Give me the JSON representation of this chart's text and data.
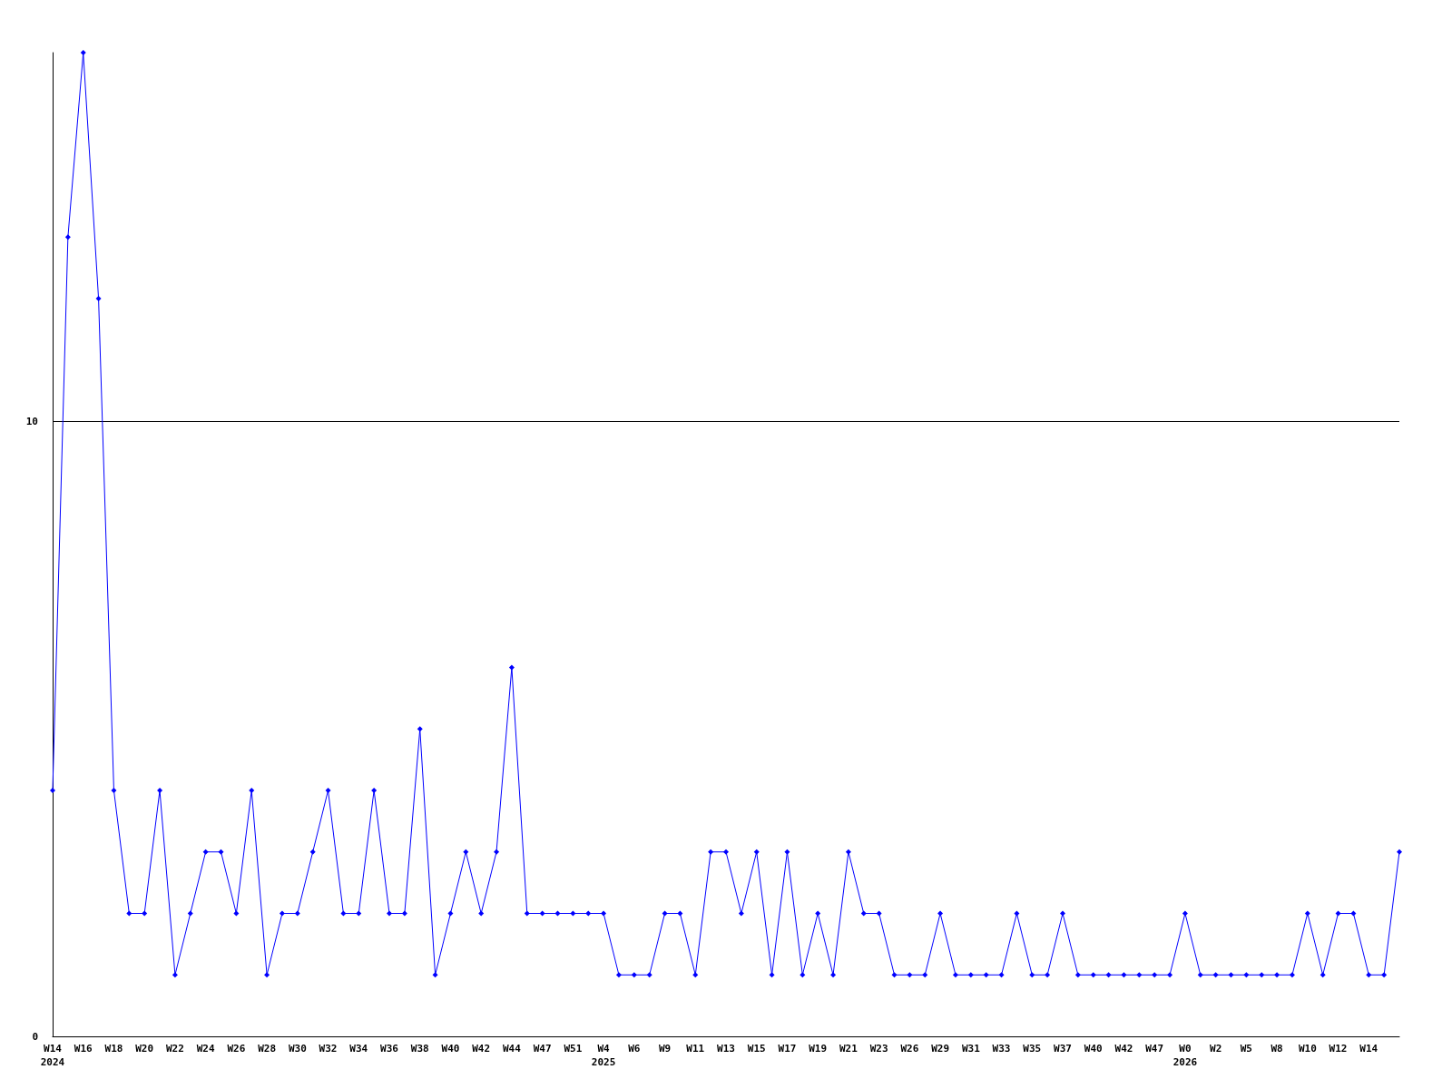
{
  "chart_data": {
    "type": "line",
    "categories": [
      "W14\n2024",
      null,
      "W16",
      null,
      "W18",
      null,
      "W20",
      null,
      "W22",
      null,
      "W24",
      null,
      "W26",
      null,
      "W28",
      null,
      "W30",
      null,
      "W32",
      null,
      "W34",
      null,
      "W36",
      null,
      "W38",
      null,
      "W40",
      null,
      "W42",
      null,
      "W44",
      null,
      "W47",
      null,
      "W51",
      null,
      "W4\n2025",
      null,
      "W6",
      null,
      "W9",
      null,
      "W11",
      null,
      "W13",
      null,
      "W15",
      null,
      "W17",
      null,
      "W19",
      null,
      "W21",
      null,
      "W23",
      null,
      "W26",
      null,
      "W29",
      null,
      "W31",
      null,
      "W33",
      null,
      "W35",
      null,
      "W37",
      null,
      "W40",
      null,
      "W42",
      null,
      "W47",
      null,
      "W0\n2026",
      null,
      "W2",
      null,
      "W5",
      null,
      "W8",
      null,
      "W10",
      null,
      "W12",
      null,
      "W14",
      null,
      null
    ],
    "series": [
      {
        "color": "#0000ff",
        "values": [
          4,
          13,
          16,
          12,
          4,
          2,
          2,
          4,
          1,
          2,
          3,
          3,
          2,
          4,
          1,
          2,
          2,
          3,
          4,
          2,
          2,
          4,
          2,
          2,
          5,
          1,
          2,
          3,
          2,
          3,
          6,
          2,
          2,
          2,
          2,
          2,
          2,
          1,
          1,
          1,
          2,
          2,
          1,
          3,
          3,
          2,
          3,
          1,
          3,
          1,
          2,
          1,
          3,
          2,
          2,
          1,
          1,
          1,
          2,
          1,
          1,
          1,
          1,
          2,
          1,
          1,
          2,
          1,
          1,
          1,
          1,
          1,
          1,
          1,
          2,
          1,
          1,
          1,
          1,
          1,
          1,
          1,
          2,
          1,
          2,
          2,
          1,
          1,
          3
        ]
      }
    ],
    "ylim": [
      0,
      16
    ],
    "yticks": [
      0,
      10
    ],
    "grid": "y",
    "marker": "diamond",
    "line_style": "solid"
  }
}
